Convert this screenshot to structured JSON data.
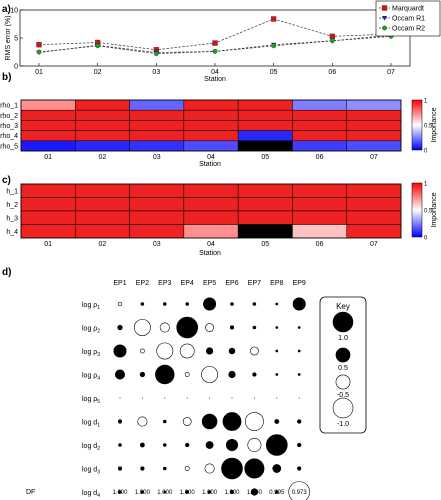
{
  "panels": {
    "a": "a)",
    "b": "b)",
    "c": "c)",
    "d": "d)"
  },
  "chart_data": [
    {
      "type": "line",
      "ylabel": "RMS error (%)",
      "xlabel": "Station",
      "ylim": [
        0,
        10
      ],
      "yticks": [
        0,
        5,
        10
      ],
      "categories": [
        "01",
        "02",
        "03",
        "04",
        "05",
        "06",
        "07"
      ],
      "grid": false,
      "legend": "top-right",
      "series": [
        {
          "name": "Marquardt",
          "marker": "square",
          "color": "#b02020",
          "values": [
            3.8,
            4.2,
            2.9,
            4.1,
            8.4,
            5.3,
            5.7
          ]
        },
        {
          "name": "Occam R1",
          "marker": "triangle",
          "color": "#1f1f9f",
          "values": [
            2.4,
            3.7,
            2.4,
            2.6,
            3.8,
            4.5,
            5.5
          ]
        },
        {
          "name": "Occam R2",
          "marker": "circle",
          "color": "#22a022",
          "values": [
            2.5,
            3.6,
            2.2,
            2.6,
            3.6,
            4.5,
            5.3
          ]
        }
      ]
    },
    {
      "type": "heatmap",
      "xlabel": "Station",
      "colorbar_label": "Importance",
      "colorbar_ticks": [
        "1",
        "0.5",
        "0"
      ],
      "categories": [
        "01",
        "02",
        "03",
        "04",
        "05",
        "06",
        "07"
      ],
      "rows": [
        "rho_1",
        "rho_2",
        "rho_3",
        "rho_4",
        "rho_5"
      ],
      "values": [
        [
          0.72,
          1.0,
          0.2,
          1.0,
          1.0,
          0.25,
          0.28
        ],
        [
          1.0,
          1.0,
          1.0,
          1.0,
          1.0,
          1.0,
          1.0
        ],
        [
          1.0,
          1.0,
          1.0,
          1.0,
          1.0,
          1.0,
          1.0
        ],
        [
          1.0,
          1.0,
          1.0,
          1.0,
          0.08,
          1.0,
          1.0
        ],
        [
          0.05,
          0.08,
          0.1,
          0.15,
          -1,
          0.12,
          0.15
        ]
      ]
    },
    {
      "type": "heatmap",
      "xlabel": "Station",
      "colorbar_label": "Importance",
      "colorbar_ticks": [
        "1",
        "0.5",
        "0"
      ],
      "categories": [
        "01",
        "02",
        "03",
        "04",
        "05",
        "06",
        "07"
      ],
      "rows": [
        "h_1",
        "h_2",
        "h_3",
        "h_4"
      ],
      "values": [
        [
          1.0,
          1.0,
          1.0,
          1.0,
          1.0,
          1.0,
          1.0
        ],
        [
          1.0,
          1.0,
          1.0,
          1.0,
          1.0,
          1.0,
          1.0
        ],
        [
          1.0,
          1.0,
          1.0,
          1.0,
          1.0,
          1.0,
          1.0
        ],
        [
          1.0,
          1.0,
          1.0,
          0.72,
          -1,
          0.62,
          1.0
        ]
      ]
    },
    {
      "type": "scatter",
      "columns": [
        "EP1",
        "EP2",
        "EP3",
        "EP4",
        "EP5",
        "EP6",
        "EP7",
        "EP8",
        "EP9"
      ],
      "rows": [
        {
          "main": "log ρ",
          "sub": "1"
        },
        {
          "main": "log ρ",
          "sub": "2"
        },
        {
          "main": "log ρ",
          "sub": "3"
        },
        {
          "main": "log ρ",
          "sub": "4"
        },
        {
          "main": "log ρ",
          "sub": "5"
        },
        {
          "main": "log d",
          "sub": "1"
        },
        {
          "main": "log d",
          "sub": "2"
        },
        {
          "main": "log d",
          "sub": "3"
        },
        {
          "main": "log d",
          "sub": "4"
        }
      ],
      "values": [
        [
          -0.03,
          0.02,
          0.02,
          0.02,
          0.35,
          0.02,
          0.02,
          0.01,
          0.35
        ],
        [
          0.05,
          -0.6,
          -0.2,
          1.0,
          -0.15,
          0.03,
          0.02,
          0.01,
          0.01
        ],
        [
          0.35,
          -0.04,
          -0.6,
          -0.45,
          0.1,
          0.08,
          -0.15,
          0.01,
          0.01
        ],
        [
          0.2,
          0.05,
          0.8,
          -0.04,
          -0.6,
          0.1,
          0.03,
          0.01,
          0.01
        ],
        [
          0.0,
          0.0,
          0.0,
          0.0,
          0.0,
          0.0,
          0.0,
          0.0,
          0.0
        ],
        [
          0.03,
          -0.2,
          0.02,
          -0.15,
          0.5,
          0.75,
          -0.75,
          0.04,
          0.03
        ],
        [
          0.02,
          0.04,
          0.02,
          0.03,
          0.12,
          0.3,
          -0.4,
          1.0,
          0.03
        ],
        [
          0.03,
          0.03,
          0.02,
          -0.04,
          -0.2,
          1.0,
          0.85,
          0.15,
          0.03
        ],
        [
          0.02,
          0.02,
          0.01,
          0.02,
          0.02,
          0.03,
          0.1,
          0.02,
          -1.0
        ]
      ],
      "df_label": "DF",
      "df_values": [
        "1.000",
        "1.000",
        "1.000",
        "1.000",
        "1.000",
        "1.000",
        "1.000",
        "0.995",
        "0.973"
      ],
      "key": {
        "title": "Key",
        "entries": [
          {
            "label": "1.0",
            "value": 1.0
          },
          {
            "label": "0.5",
            "value": 0.5
          },
          {
            "label": "-0.5",
            "value": -0.5
          },
          {
            "label": "-1.0",
            "value": -1.0
          }
        ]
      }
    }
  ]
}
